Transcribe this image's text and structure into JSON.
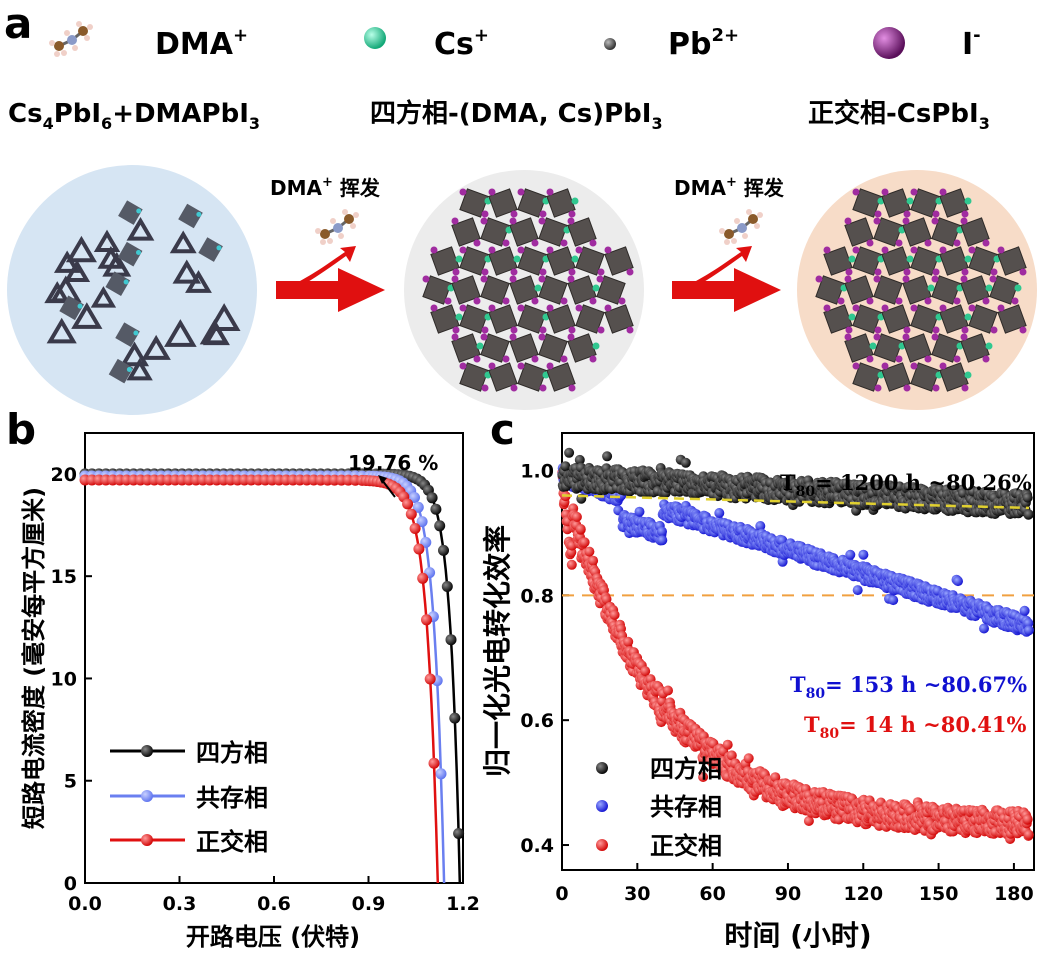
{
  "panel_a": {
    "letter": "a",
    "legend": [
      {
        "label": "DMA",
        "sup": "+",
        "icon": "dma-molecule-icon"
      },
      {
        "label": "Cs",
        "sup": "+",
        "color": "#2ecc9a"
      },
      {
        "label": "Pb",
        "sup": "2+",
        "color": "#666666"
      },
      {
        "label": "I",
        "sup": "-",
        "color": "#8e2a8e"
      }
    ],
    "phases": [
      {
        "pre": "Cs",
        "s1": "4",
        "mid": "PbI",
        "s2": "6",
        "post": "+DMAPbI",
        "s3": "3"
      },
      {
        "pre": "四方相-(DMA, Cs)PbI",
        "s1": "3"
      },
      {
        "pre": "正交相-CsPbI",
        "s1": "3"
      }
    ],
    "arrow_labels": [
      {
        "main": "DMA",
        "sup": "+",
        "tail": " 挥发"
      },
      {
        "main": "DMA",
        "sup": "+",
        "tail": " 挥发"
      }
    ],
    "circle_colors": [
      "#d6e5f3",
      "#ececec",
      "#f7dcc8"
    ]
  },
  "panel_b": {
    "letter": "b",
    "annotation": "19.76 %",
    "legend": [
      "四方相",
      "共存相",
      "正交相"
    ]
  },
  "panel_c": {
    "letter": "c",
    "legend": [
      "四方相",
      "共存相",
      "正交相"
    ],
    "annotations": [
      {
        "pre": "T",
        "sub": "80",
        "text": "= 1200 h ~80.26%",
        "color": "#000000"
      },
      {
        "pre": "T",
        "sub": "80",
        "text": "= 153 h ~80.67%",
        "color": "#1010d0"
      },
      {
        "pre": "T",
        "sub": "80",
        "text": "= 14 h ~80.41%",
        "color": "#e01010"
      }
    ]
  },
  "chart_data": [
    {
      "type": "line",
      "xlabel": "开路电压 (伏特)",
      "ylabel": "短路电流密度 (毫安每平方厘米)",
      "xlim": [
        0.0,
        1.2
      ],
      "ylim": [
        0,
        22
      ],
      "xticks": [
        "0.0",
        "0.3",
        "0.6",
        "0.9",
        "1.2"
      ],
      "yticks": [
        "0",
        "5",
        "10",
        "15",
        "20"
      ],
      "series": [
        {
          "name": "四方相",
          "color": "#000000",
          "isc": 20.0,
          "voc": 1.19,
          "knee": 0.031
        },
        {
          "name": "共存相",
          "color": "#6a7ff0",
          "isc": 19.9,
          "voc": 1.14,
          "knee": 0.032
        },
        {
          "name": "正交相",
          "color": "#e01010",
          "isc": 19.7,
          "voc": 1.12,
          "knee": 0.034
        }
      ]
    },
    {
      "type": "scatter",
      "xlabel": "时间 (小时)",
      "ylabel": "归一化光电转化效率",
      "xlim": [
        0,
        188
      ],
      "ylim": [
        0.36,
        1.06
      ],
      "xticks": [
        "0",
        "30",
        "60",
        "90",
        "120",
        "150",
        "180"
      ],
      "yticks": [
        "0.4",
        "0.6",
        "0.8",
        "1.0"
      ],
      "reference_line": 0.8,
      "series": [
        {
          "name": "四方相",
          "color": "#111111",
          "start": 0.99,
          "end": 0.945,
          "shape": "linear",
          "noise": 0.018
        },
        {
          "name": "共存相",
          "color": "#1515e0",
          "start": 0.99,
          "end": 0.75,
          "shape": "linear",
          "noise": 0.012
        },
        {
          "name": "正交相",
          "color": "#e81010",
          "start": 0.99,
          "end": 0.43,
          "shape": "decay",
          "noise": 0.02
        }
      ]
    }
  ]
}
